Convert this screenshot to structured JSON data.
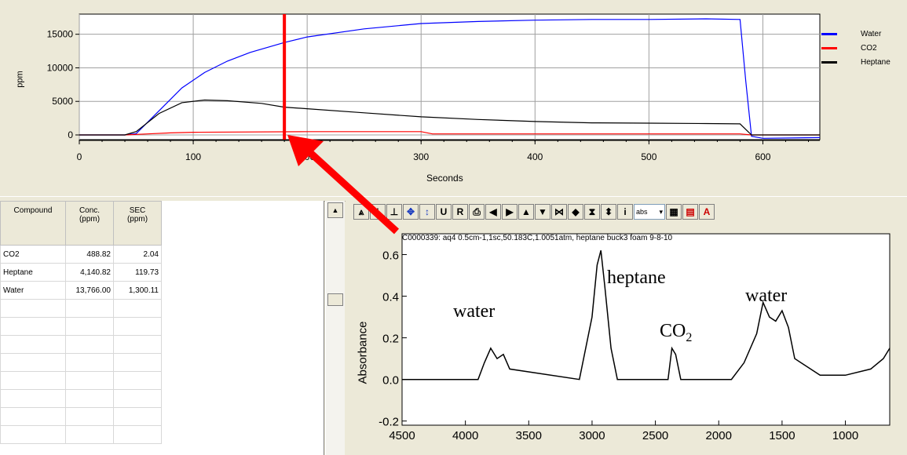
{
  "top_chart": {
    "ylabel": "ppm",
    "xlabel": "Seconds",
    "yticks": [
      "15000",
      "10000",
      "5000",
      "0"
    ],
    "xticks": [
      "0",
      "100",
      "200",
      "300",
      "400",
      "500",
      "600"
    ],
    "legend": [
      {
        "label": "Water",
        "color": "#0000ff"
      },
      {
        "label": "CO2",
        "color": "#ff0000"
      },
      {
        "label": "Heptane",
        "color": "#000000"
      }
    ],
    "chart_data": {
      "type": "line",
      "xlabel": "Seconds",
      "ylabel": "ppm",
      "xlim": [
        0,
        650
      ],
      "ylim": [
        -700,
        18000
      ],
      "cursor_x": 180,
      "series": [
        {
          "name": "Water",
          "color": "#0000ff",
          "x": [
            0,
            40,
            50,
            70,
            90,
            110,
            130,
            150,
            180,
            200,
            250,
            300,
            350,
            400,
            450,
            500,
            550,
            580,
            585,
            590,
            600,
            650
          ],
          "values": [
            0,
            0,
            200,
            3600,
            7000,
            9300,
            11000,
            12300,
            13766,
            14600,
            15800,
            16600,
            16900,
            17100,
            17200,
            17200,
            17300,
            17200,
            8000,
            -200,
            -500,
            -400
          ]
        },
        {
          "name": "CO2",
          "color": "#ff0000",
          "x": [
            0,
            40,
            60,
            80,
            100,
            200,
            300,
            310,
            400,
            500,
            580,
            590,
            650
          ],
          "values": [
            0,
            0,
            150,
            300,
            400,
            488,
            488,
            150,
            150,
            150,
            150,
            0,
            0
          ]
        },
        {
          "name": "Heptane",
          "color": "#000000",
          "x": [
            0,
            40,
            50,
            70,
            90,
            110,
            130,
            160,
            180,
            200,
            250,
            300,
            350,
            400,
            450,
            500,
            550,
            580,
            590,
            600,
            650
          ],
          "values": [
            0,
            0,
            500,
            3200,
            4800,
            5200,
            5100,
            4700,
            4140,
            3900,
            3300,
            2700,
            2300,
            2000,
            1800,
            1750,
            1700,
            1650,
            0,
            0,
            0
          ]
        }
      ]
    }
  },
  "table": {
    "headers": [
      "Compound",
      "Conc.\n(ppm)",
      "SEC\n(ppm)"
    ],
    "rows": [
      {
        "compound": "CO2",
        "conc": "488.82",
        "sec": "2.04"
      },
      {
        "compound": "Heptane",
        "conc": "4,140.82",
        "sec": "119.73"
      },
      {
        "compound": "Water",
        "conc": "13,766.00",
        "sec": "1,300.11"
      }
    ]
  },
  "toolbar": {
    "buttons": [
      "peak-tool",
      "baseline-tool",
      "cursor-tool",
      "pan-tool",
      "vertical-scale",
      "U",
      "R",
      "print",
      "left",
      "right",
      "up",
      "down",
      "zoom-x",
      "expand-x",
      "zoom-y",
      "expand-y",
      "info"
    ],
    "select_value": "abs"
  },
  "spectrum": {
    "header": "C0000339: aq4 0.5cm-1,1sc,50.183C,1.0051atm, heptane buck3 foam 9-8-10",
    "ylabel": "Absorbance",
    "yticks": [
      "0.6",
      "0.4",
      "0.2",
      "0.0",
      "-0.2"
    ],
    "xticks": [
      "4500",
      "4000",
      "3500",
      "3000",
      "2500",
      "2000",
      "1500",
      "1000"
    ],
    "annotations": {
      "water1": "water",
      "heptane": "heptane",
      "co2": "CO",
      "co2_sub": "2",
      "water2": "water"
    },
    "chart_data": {
      "type": "line",
      "xlabel": "",
      "ylabel": "Absorbance",
      "xlim": [
        4500,
        650
      ],
      "ylim": [
        -0.22,
        0.7
      ],
      "series": [
        {
          "name": "",
          "x": [
            4500,
            3900,
            3850,
            3800,
            3750,
            3700,
            3650,
            3100,
            3000,
            2960,
            2930,
            2900,
            2870,
            2850,
            2800,
            2400,
            2370,
            2340,
            2300,
            1900,
            1800,
            1700,
            1650,
            1600,
            1550,
            1500,
            1450,
            1400,
            1200,
            1000,
            800,
            700,
            650
          ],
          "values": [
            0,
            0,
            0.08,
            0.15,
            0.1,
            0.12,
            0.05,
            0,
            0.3,
            0.55,
            0.62,
            0.45,
            0.27,
            0.15,
            0,
            0,
            0.15,
            0.12,
            0,
            0,
            0.08,
            0.22,
            0.37,
            0.3,
            0.28,
            0.33,
            0.25,
            0.1,
            0.02,
            0.02,
            0.05,
            0.1,
            0.15
          ]
        }
      ]
    }
  }
}
